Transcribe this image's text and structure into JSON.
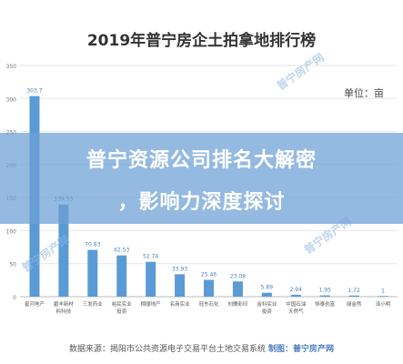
{
  "chart_data": {
    "type": "bar",
    "title": "2019年普宁房企土拍拿地排行榜",
    "unit_label": "单位：亩",
    "ylim": [
      0,
      350
    ],
    "yticks": [
      0,
      50,
      100,
      150,
      200,
      250,
      300,
      350
    ],
    "categories": [
      "星河地产",
      "碧丰新材料科技",
      "三发药业",
      "裕民实业投资",
      "翔顺地产",
      "名商实业",
      "冠东石化",
      "刘儒彩印",
      "金科实业投资",
      "中国石油天然气",
      "恒泰创富",
      "绿金然",
      "泽小明"
    ],
    "values": [
      303.7,
      139.55,
      70.83,
      62.53,
      52.74,
      33.93,
      25.46,
      23.08,
      5.89,
      2.94,
      1.95,
      1.72,
      1
    ],
    "bar_color": "#5b9bd5"
  },
  "banner": {
    "line1": "普宁资源公司排名大解密",
    "line2": "，影响力深度探讨"
  },
  "footer": {
    "source": "数据来源：揭阳市公共资源电子交易平台土地交易系统",
    "maker": "制图：普宁房产网"
  },
  "watermark": "普宁房产网"
}
